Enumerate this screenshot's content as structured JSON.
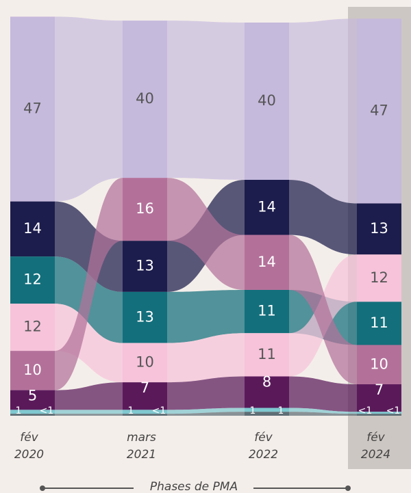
{
  "chart_data": {
    "type": "alluvial",
    "categories": [
      [
        "fév",
        "2020"
      ],
      [
        "mars",
        "2021"
      ],
      [
        "fév",
        "2022"
      ],
      [
        "fév",
        "2024"
      ]
    ],
    "highlight": 3,
    "series": [
      {
        "color": "#c5b9dc",
        "values": [
          47,
          40,
          40,
          47
        ]
      },
      {
        "color": "#1c1d4c",
        "values": [
          14,
          13,
          14,
          13
        ]
      },
      {
        "color": "#136f7c",
        "values": [
          12,
          13,
          11,
          11
        ]
      },
      {
        "color": "#f6c3da",
        "values": [
          12,
          10,
          11,
          12
        ]
      },
      {
        "color": "#b3719a",
        "values": [
          10,
          16,
          14,
          10
        ]
      },
      {
        "color": "#5a1a5a",
        "values": [
          5,
          7,
          8,
          7
        ]
      },
      {
        "color": "#7fc8d0",
        "values": [
          1,
          1,
          1,
          0.5
        ],
        "value_labels": [
          "1",
          "1",
          "1",
          "<1"
        ]
      },
      {
        "color": "#5f6f76",
        "values": [
          0.5,
          0.5,
          1,
          0.5
        ],
        "value_labels": [
          "<1",
          "<1",
          "1",
          "<1"
        ]
      }
    ],
    "axis_label": "Phases de PMA"
  }
}
